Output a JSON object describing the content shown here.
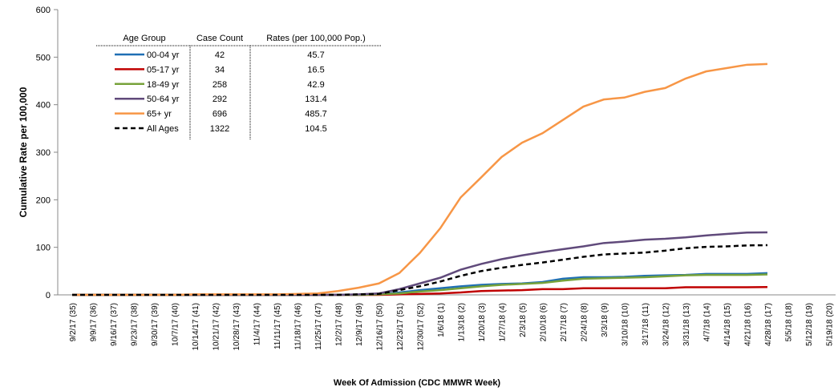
{
  "chart_data": {
    "type": "line",
    "x_label": "Week Of Admission  (CDC MMWR Week)",
    "y_label": "Cumulative Rate per 100,000",
    "legend_headers": [
      "Age Group",
      "Case Count",
      "Rates (per 100,000 Pop.)"
    ],
    "categories": [
      "9/2/17 (35)",
      "9/9/17 (36)",
      "9/16/17 (37)",
      "9/23/17 (38)",
      "9/30/17 (39)",
      "10/7/17 (40)",
      "10/14/17 (41)",
      "10/21/17 (42)",
      "10/28/17 (43)",
      "11/4/17 (44)",
      "11/11/17 (45)",
      "11/18/17 (46)",
      "11/25/17 (47)",
      "12/2/17 (48)",
      "12/9/17 (49)",
      "12/16/17 (50)",
      "12/23/17 (51)",
      "12/30/17 (52)",
      "1/6/18 (1)",
      "1/13/18 (2)",
      "1/20/18 (3)",
      "1/27/18 (4)",
      "2/3/18 (5)",
      "2/10/18 (6)",
      "2/17/18 (7)",
      "2/24/18 (8)",
      "3/3/18 (9)",
      "3/10/18 (10)",
      "3/17/18 (11)",
      "3/24/18 (12)",
      "3/31/18 (13)",
      "4/7/18 (14)",
      "4/14/18 (15)",
      "4/21/18 (16)",
      "4/28/18 (17)",
      "5/5/18 (18)",
      "5/12/18 (19)",
      "5/19/18 (20)"
    ],
    "series": [
      {
        "name": "00-04 yr",
        "color": "#1f6fb4",
        "case_count": 42,
        "rate": 45.7,
        "values": [
          0,
          0,
          0,
          0,
          0,
          0,
          0,
          0,
          0,
          0,
          0,
          0,
          0,
          0,
          0,
          1,
          5,
          10,
          14,
          18,
          21,
          23,
          24,
          27,
          34,
          37,
          37,
          38,
          40,
          41,
          42,
          44,
          44,
          44,
          45.7,
          null,
          null,
          null
        ]
      },
      {
        "name": "05-17 yr",
        "color": "#c00000",
        "case_count": 34,
        "rate": 16.5,
        "values": [
          0,
          0,
          0,
          0,
          0,
          0,
          0,
          0,
          0,
          0,
          0,
          0,
          0,
          0,
          0,
          0,
          1,
          2,
          3,
          5,
          8,
          9,
          10,
          12,
          12,
          14,
          14,
          14,
          14,
          14,
          16,
          16,
          16,
          16,
          16.5,
          null,
          null,
          null
        ]
      },
      {
        "name": "18-49 yr",
        "color": "#77a23a",
        "case_count": 258,
        "rate": 42.9,
        "values": [
          0,
          0,
          0,
          0,
          0,
          0,
          0,
          0,
          0,
          0,
          0,
          0,
          0,
          0,
          0,
          1,
          3,
          7,
          10,
          14,
          18,
          21,
          23,
          25,
          30,
          34,
          35,
          36,
          37,
          39,
          41,
          42,
          42,
          42,
          42.9,
          null,
          null,
          null
        ]
      },
      {
        "name": "50-64 yr",
        "color": "#604a7b",
        "case_count": 292,
        "rate": 131.4,
        "values": [
          0,
          0,
          0,
          0,
          0,
          0,
          0,
          0,
          0,
          0,
          0,
          0,
          0,
          0,
          1,
          3,
          12,
          24,
          36,
          53,
          65,
          75,
          83,
          90,
          96,
          102,
          109,
          112,
          116,
          118,
          121,
          125,
          128,
          131,
          131.4,
          null,
          null,
          null
        ]
      },
      {
        "name": "65+ yr",
        "color": "#f79646",
        "case_count": 696,
        "rate": 485.7,
        "values": [
          0,
          0,
          0,
          0,
          0,
          0,
          1,
          1,
          1,
          1,
          1,
          2,
          3,
          8,
          15,
          24,
          46,
          88,
          140,
          205,
          247,
          290,
          320,
          340,
          368,
          396,
          411,
          415,
          427,
          435,
          455,
          470,
          477,
          484,
          485.7,
          null,
          null,
          null
        ]
      },
      {
        "name": "All Ages",
        "color": "#000000",
        "dashed": true,
        "case_count": 1322,
        "rate": 104.5,
        "values": [
          0,
          0,
          0,
          0,
          0,
          0,
          0,
          0,
          0,
          0,
          0,
          0,
          0,
          0,
          1,
          2,
          10,
          18,
          28,
          40,
          50,
          57,
          63,
          68,
          74,
          80,
          85,
          87,
          89,
          93,
          98,
          101,
          102,
          104,
          104.5,
          null,
          null,
          null
        ]
      }
    ],
    "ylim": [
      0,
      600
    ],
    "yticks": [
      0,
      100,
      200,
      300,
      400,
      500,
      600
    ]
  }
}
